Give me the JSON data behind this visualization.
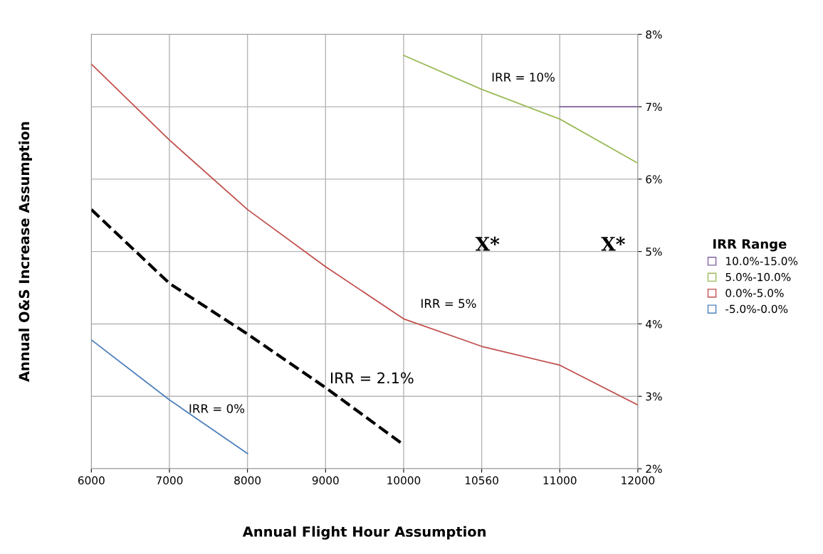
{
  "chart_data": {
    "type": "line",
    "xlabel": "Annual Flight Hour Assumption",
    "ylabel": "Annual O&S Increase Assumption",
    "legend_title": "IRR Range",
    "categories": [
      "6000",
      "7000",
      "8000",
      "9000",
      "10000",
      "10560",
      "11000",
      "12000"
    ],
    "series": [
      {
        "name": "10.0%-15.0%",
        "color": "#8064a2",
        "values": [
          null,
          null,
          null,
          null,
          null,
          null,
          7,
          7
        ]
      },
      {
        "name": "5.0%-10.0%",
        "color": "#9bbb59",
        "values": [
          null,
          null,
          null,
          null,
          7.71,
          7.24,
          6.83,
          6.22
        ]
      },
      {
        "name": "0.0%-5.0%",
        "color": "#c0504d",
        "values": [
          7.59,
          6.54,
          5.58,
          4.79,
          4.07,
          3.69,
          3.43,
          2.88
        ]
      },
      {
        "name": "-5.0%-0.0%",
        "color": "#4f81bd",
        "values": [
          3.78,
          2.95,
          2.21,
          null,
          null,
          null,
          null,
          null
        ]
      },
      {
        "color": "#000000",
        "line_style": "dashed",
        "values": [
          5.58,
          4.56,
          3.86,
          3.12,
          2.33,
          null,
          null,
          null
        ]
      }
    ],
    "ylim": [
      2,
      8
    ],
    "yticks": [
      {
        "value": 2,
        "label": "2%"
      },
      {
        "value": 3,
        "label": "3%"
      },
      {
        "value": 4,
        "label": "4%"
      },
      {
        "value": 5,
        "label": "5%"
      },
      {
        "value": 6,
        "label": "6%"
      },
      {
        "value": 7,
        "label": "7%"
      },
      {
        "value": 8,
        "label": "8%"
      }
    ],
    "grid": true,
    "legend": "right",
    "annotations": [
      "IRR = 10%",
      "IRR = 5%",
      "IRR = 2.1%",
      "IRR = 0%",
      "X*",
      "X*"
    ]
  }
}
